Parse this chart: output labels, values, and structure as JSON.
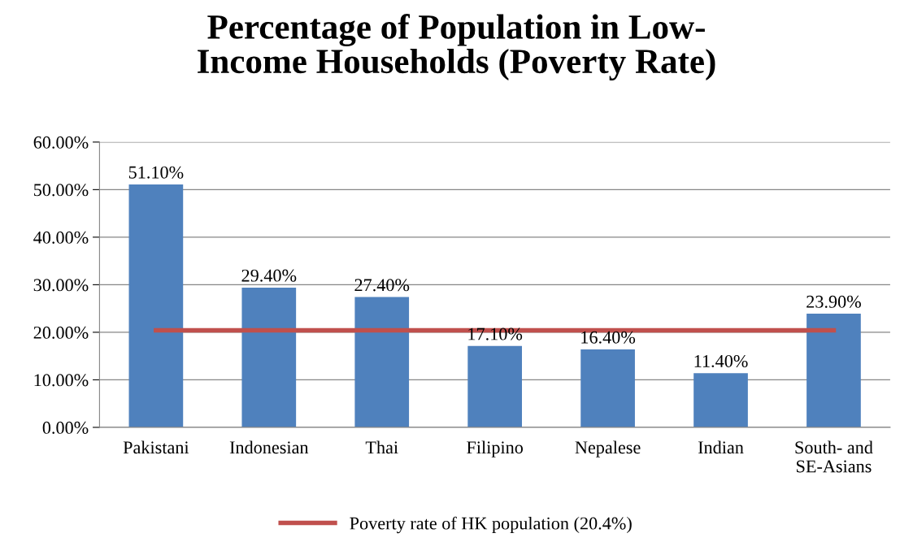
{
  "chart_data": {
    "type": "bar",
    "title": "Percentage of Population in Low-\nIncome Households (Poverty Rate)",
    "categories": [
      "Pakistani",
      "Indonesian",
      "Thai",
      "Filipino",
      "Nepalese",
      "Indian",
      "South- and\nSE-Asians"
    ],
    "series": [
      {
        "color": "#4f81bd",
        "values": [
          51.1,
          29.4,
          27.4,
          17.1,
          16.4,
          11.4,
          23.9
        ],
        "value_labels": [
          "51.10%",
          "29.40%",
          "27.40%",
          "17.10%",
          "16.40%",
          "11.40%",
          "23.90%"
        ]
      },
      {
        "type": "line",
        "name": "Poverty rate of HK population (20.4%)",
        "color": "#c0504d",
        "values": [
          20.4,
          20.4,
          20.4,
          20.4,
          20.4,
          20.4,
          20.4
        ]
      }
    ],
    "ylim": [
      0,
      60
    ],
    "yticks": [
      {
        "value": 0,
        "label": "0.00%"
      },
      {
        "value": 10,
        "label": "10.00%"
      },
      {
        "value": 20,
        "label": "20.00%"
      },
      {
        "value": 30,
        "label": "30.00%"
      },
      {
        "value": 40,
        "label": "40.00%"
      },
      {
        "value": 50,
        "label": "50.00%"
      },
      {
        "value": 60,
        "label": "60.00%"
      }
    ],
    "grid": "y",
    "legend": "bottom"
  }
}
